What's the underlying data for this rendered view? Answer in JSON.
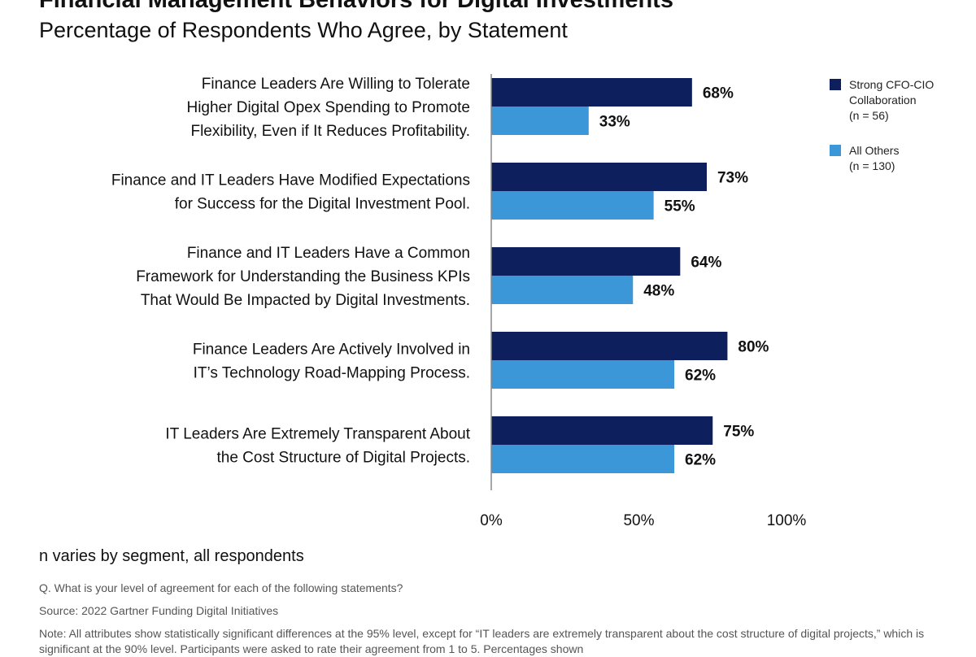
{
  "chart_data": {
    "type": "bar",
    "orientation": "horizontal",
    "title": "Financial Management Behaviors for Digital Investments",
    "subtitle": "Percentage of Respondents Who Agree, by Statement",
    "categories": [
      [
        "Finance Leaders Are Willing to Tolerate",
        "Higher Digital Opex Spending to Promote",
        "Flexibility, Even if It Reduces Profitability."
      ],
      [
        "Finance and IT Leaders Have Modified Expectations",
        "for Success for the Digital Investment Pool."
      ],
      [
        "Finance and IT Leaders Have a Common",
        "Framework  for Understanding the Business KPIs",
        "That Would Be Impacted by Digital Investments."
      ],
      [
        "Finance Leaders Are Actively Involved in",
        "IT’s Technology Road-Mapping Process."
      ],
      [
        "IT Leaders Are Extremely Transparent About",
        "the Cost Structure of Digital Projects."
      ]
    ],
    "series": [
      {
        "name": "Strong CFO-CIO Collaboration",
        "n_label": "(n = 56)",
        "color": "#0d1f5c",
        "values": [
          68,
          73,
          64,
          80,
          75
        ],
        "labels": [
          "68%",
          "73%",
          "64%",
          "80%",
          "75%"
        ]
      },
      {
        "name": "All Others",
        "n_label": "(n = 130)",
        "color": "#3b97d8",
        "values": [
          33,
          55,
          48,
          62,
          62
        ],
        "labels": [
          "33%",
          "55%",
          "48%",
          "62%",
          "62%"
        ]
      }
    ],
    "xlim": [
      0,
      100
    ],
    "xticks": [
      0,
      50,
      100
    ],
    "xtick_labels": [
      "0%",
      "50%",
      "100%"
    ],
    "legend_position": "top-right",
    "grid": false
  },
  "footer": {
    "n_varies": "n varies by segment, all respondents",
    "question": "Q. What is your level of agreement for each of the following statements?",
    "source": "Source: 2022 Gartner Funding Digital Initiatives",
    "note": "Note: All attributes show statistically significant differences at the 95% level, except for “IT leaders are extremely transparent about the cost structure of digital projects,” which is significant at the 90% level. Participants were asked to rate their agreement from 1 to 5. Percentages shown"
  }
}
